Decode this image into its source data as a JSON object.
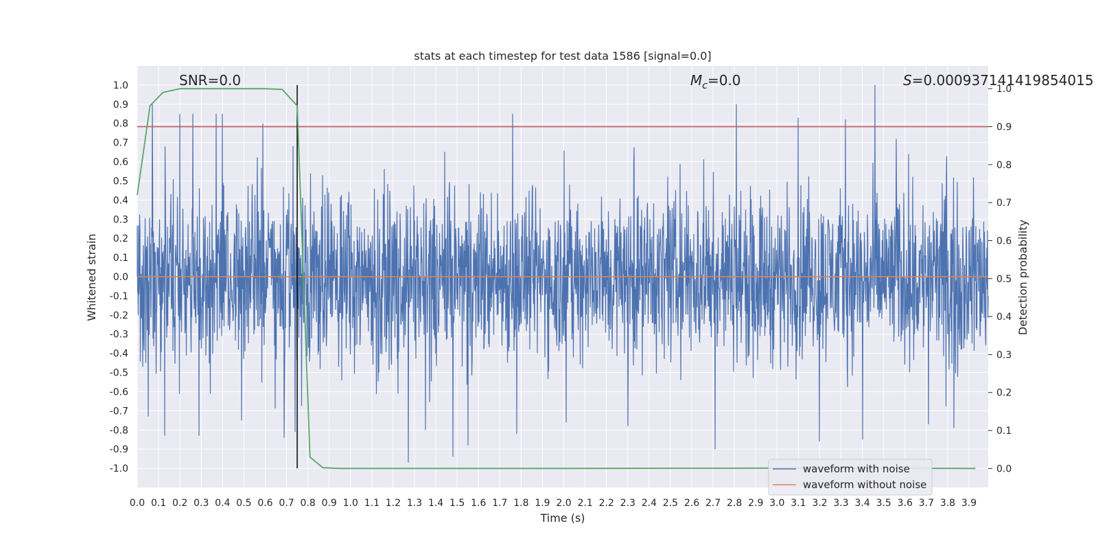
{
  "chart_data": {
    "type": "line",
    "title": "stats at each timestep for test data 1586 [signal=0.0]",
    "xlabel": "Time (s)",
    "ylabel": "Whitened strain",
    "y2label": "Detection probability",
    "xlim": [
      0.0,
      3.99
    ],
    "ylim": [
      -1.1,
      1.1
    ],
    "y2lim": [
      -0.05,
      1.06
    ],
    "grid": true,
    "legend_position": "lower-right",
    "x_ticks": [
      "0.0",
      "0.1",
      "0.2",
      "0.3",
      "0.4",
      "0.5",
      "0.6",
      "0.7",
      "0.8",
      "0.9",
      "1.0",
      "1.1",
      "1.2",
      "1.3",
      "1.4",
      "1.5",
      "1.6",
      "1.7",
      "1.8",
      "1.9",
      "2.0",
      "2.1",
      "2.2",
      "2.3",
      "2.4",
      "2.5",
      "2.6",
      "2.7",
      "2.8",
      "2.9",
      "3.0",
      "3.1",
      "3.2",
      "3.3",
      "3.4",
      "3.5",
      "3.6",
      "3.7",
      "3.8",
      "3.9"
    ],
    "y_ticks": [
      "1.0",
      "0.9",
      "0.8",
      "0.7",
      "0.6",
      "0.5",
      "0.4",
      "0.3",
      "0.2",
      "0.1",
      "0.0",
      "-0.1",
      "-0.2",
      "-0.3",
      "-0.4",
      "-0.5",
      "-0.6",
      "-0.7",
      "-0.8",
      "-0.9",
      "-1.0"
    ],
    "y2_ticks": [
      "1.0",
      "0.9",
      "0.8",
      "0.7",
      "0.6",
      "0.5",
      "0.4",
      "0.3",
      "0.2",
      "0.1",
      "0.0"
    ],
    "annotations": {
      "snr": "SNR=0.0",
      "mc_symbol": "M",
      "mc_sub": "c",
      "mc_value": "=0.0",
      "s_symbol": "S",
      "s_value": "=0.000937141419854015"
    },
    "series": [
      {
        "name": "waveform with noise",
        "color": "#4c72b0",
        "note": "dense whitened noise, amplitude approx ±0.3 with spikes to ±1.0",
        "spikes_pos": [
          [
            0.07,
            0.9
          ],
          [
            0.2,
            0.85
          ],
          [
            0.26,
            0.85
          ],
          [
            0.37,
            0.85
          ],
          [
            0.4,
            0.85
          ],
          [
            0.59,
            0.8
          ],
          [
            0.69,
            0.8
          ],
          [
            1.76,
            0.85
          ],
          [
            2.81,
            0.9
          ],
          [
            3.1,
            0.83
          ],
          [
            3.32,
            0.82
          ],
          [
            3.46,
            1.0
          ],
          [
            3.56,
            0.72
          ]
        ],
        "spikes_neg": [
          [
            0.05,
            -0.73
          ],
          [
            0.13,
            -0.83
          ],
          [
            0.29,
            -0.83
          ],
          [
            0.49,
            -0.75
          ],
          [
            0.69,
            -0.84
          ],
          [
            0.74,
            -0.81
          ],
          [
            1.27,
            -0.97
          ],
          [
            1.35,
            -0.8
          ],
          [
            1.48,
            -0.94
          ],
          [
            1.55,
            -0.88
          ],
          [
            1.78,
            -0.82
          ],
          [
            2.01,
            -0.76
          ],
          [
            2.3,
            -0.78
          ],
          [
            2.71,
            -0.9
          ],
          [
            3.2,
            -0.86
          ],
          [
            3.4,
            -0.85
          ],
          [
            3.71,
            -0.77
          ],
          [
            3.83,
            -0.79
          ]
        ]
      },
      {
        "name": "waveform without noise",
        "color": "#dd8452",
        "x": [
          0.0,
          3.99
        ],
        "y": [
          0.0,
          0.0
        ]
      },
      {
        "name": "",
        "axis": "right",
        "color": "#55a868",
        "x": [
          0.0,
          0.06,
          0.12,
          0.2,
          0.3,
          0.4,
          0.5,
          0.6,
          0.68,
          0.75,
          0.81,
          0.87,
          0.95,
          1.2,
          2.0,
          3.0,
          3.93
        ],
        "y": [
          0.72,
          0.955,
          0.99,
          1.0,
          1.0,
          1.0,
          1.0,
          1.0,
          0.998,
          0.955,
          0.03,
          0.002,
          0.0,
          0.0,
          0.0,
          0.001,
          0.0
        ]
      }
    ],
    "threshold_line": {
      "axis": "right",
      "y": 0.9,
      "color": "#c44e52"
    },
    "marker_line": {
      "x": 0.75,
      "y_range": [
        -1.0,
        1.0
      ],
      "color": "#000000"
    }
  }
}
